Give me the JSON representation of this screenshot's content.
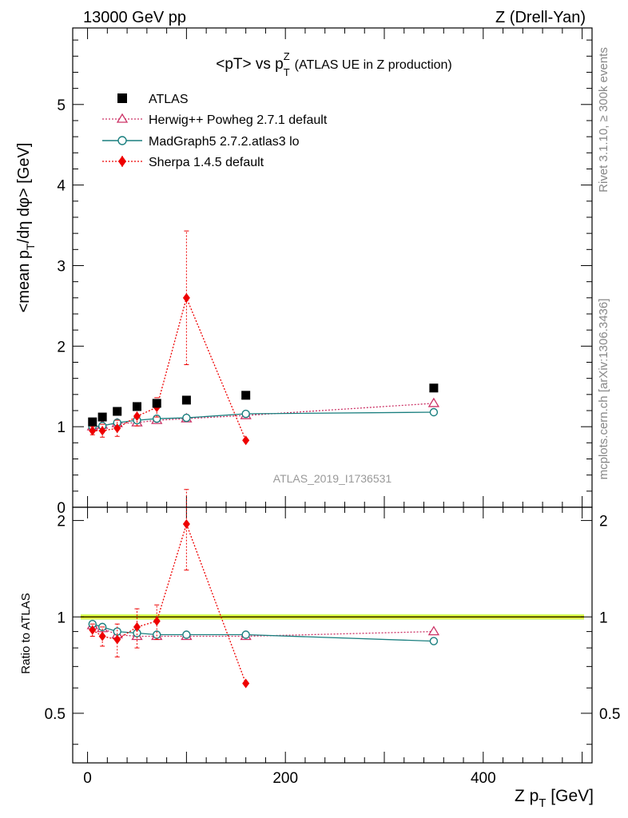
{
  "header": {
    "left": "13000 GeV pp",
    "right": "Z (Drell-Yan)"
  },
  "side_labels": {
    "rivet": "Rivet 3.1.10, ≥ 300k events",
    "mcplots": "mcplots.cern.ch [arXiv:1306.3436]"
  },
  "analysis_id": "ATLAS_2019_I1736531",
  "colors": {
    "atlas": "#000000",
    "herwig": "#cc3366",
    "madgraph": "#1a7f7f",
    "sherpa": "#ee0000",
    "band_inner": "#ffff00",
    "band_outer": "#ccff66"
  },
  "chart_data": [
    {
      "type": "scatter",
      "panel": "main",
      "title": {
        "main": "<pT> vs p",
        "sup": "Z",
        "sub": "T",
        "suffix": "(ATLAS UE in Z production)"
      },
      "ylabel": {
        "pre": "<mean p",
        "sub": "T",
        "post": "/dη dφ> [GeV]"
      },
      "xlim": [
        -15,
        510
      ],
      "ylim": [
        0,
        5.95
      ],
      "yticks": [
        "0",
        "1",
        "2",
        "3",
        "4",
        "5"
      ],
      "legend": {
        "placement": "top-left",
        "entries": [
          "ATLAS",
          "Herwig++ Powheg 2.7.1 default",
          "MadGraph5 2.7.2.atlas3 lo",
          "Sherpa 1.4.5 default"
        ]
      },
      "series": [
        {
          "name": "ATLAS",
          "marker": "square",
          "x": [
            5,
            15,
            30,
            50,
            70,
            100,
            160,
            350
          ],
          "y": [
            1.06,
            1.12,
            1.19,
            1.25,
            1.29,
            1.33,
            1.39,
            1.48
          ]
        },
        {
          "name": "Herwig++ Powheg 2.7.1 default",
          "marker": "open-triangle",
          "line": "dotted",
          "x": [
            5,
            15,
            30,
            50,
            70,
            100,
            160,
            350
          ],
          "y": [
            1.0,
            1.02,
            1.04,
            1.05,
            1.08,
            1.1,
            1.14,
            1.29
          ]
        },
        {
          "name": "MadGraph5 2.7.2.atlas3 lo",
          "marker": "open-circle",
          "line": "solid",
          "x": [
            5,
            15,
            30,
            50,
            70,
            100,
            160,
            350
          ],
          "y": [
            1.0,
            1.01,
            1.05,
            1.08,
            1.1,
            1.11,
            1.16,
            1.18
          ]
        },
        {
          "name": "Sherpa 1.4.5 default",
          "marker": "diamond",
          "line": "dotted",
          "x": [
            5,
            15,
            30,
            50,
            70,
            100,
            160
          ],
          "y": [
            0.95,
            0.95,
            0.98,
            1.13,
            1.24,
            2.6,
            0.83
          ],
          "yerr": [
            0.05,
            0.08,
            0.1,
            0.12,
            0.12,
            0.83,
            0.0
          ]
        }
      ]
    },
    {
      "type": "scatter",
      "panel": "ratio",
      "ylabel": "Ratio to ATLAS",
      "xlabel": {
        "pre": "Z p",
        "sub": "T",
        "post": " [GeV]"
      },
      "xlim": [
        -15,
        510
      ],
      "ylim": [
        0.35,
        2.2
      ],
      "yticks": [
        "0.5",
        "1",
        "2"
      ],
      "xticks": [
        "0",
        "200",
        "400"
      ],
      "series": [
        {
          "name": "Herwig++ Powheg 2.7.1 default",
          "x": [
            5,
            15,
            30,
            50,
            70,
            100,
            160,
            350
          ],
          "y": [
            0.94,
            0.92,
            0.88,
            0.87,
            0.87,
            0.87,
            0.87,
            0.9
          ]
        },
        {
          "name": "MadGraph5 2.7.2.atlas3 lo",
          "x": [
            5,
            15,
            30,
            50,
            70,
            100,
            160,
            350
          ],
          "y": [
            0.95,
            0.93,
            0.9,
            0.89,
            0.88,
            0.88,
            0.88,
            0.84
          ]
        },
        {
          "name": "Sherpa 1.4.5 default",
          "x": [
            5,
            15,
            30,
            50,
            70,
            100,
            160
          ],
          "y": [
            0.91,
            0.87,
            0.85,
            0.93,
            0.97,
            1.95,
            0.62
          ],
          "yerr": [
            0.04,
            0.06,
            0.1,
            0.13,
            0.12,
            0.55,
            0.0
          ]
        }
      ]
    }
  ]
}
